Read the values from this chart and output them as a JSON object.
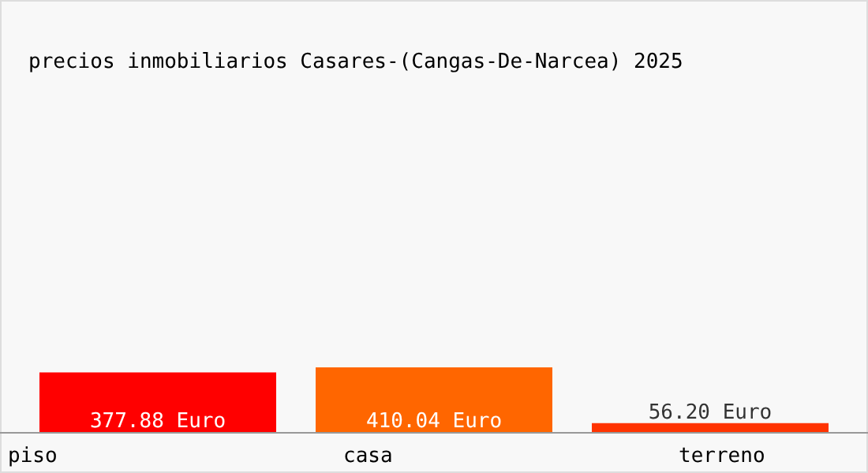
{
  "chart_data": {
    "type": "bar",
    "title": "precios inmobiliarios Casares-(Cangas-De-Narcea) 2025",
    "categories": [
      "piso",
      "casa",
      "terreno"
    ],
    "values": [
      377.88,
      410.04,
      56.2
    ],
    "colors": [
      "#ff0000",
      "#ff6600",
      "#ff3300"
    ],
    "value_labels": [
      "377.88 Euro",
      "410.04 Euro",
      "56.20 Euro"
    ]
  }
}
